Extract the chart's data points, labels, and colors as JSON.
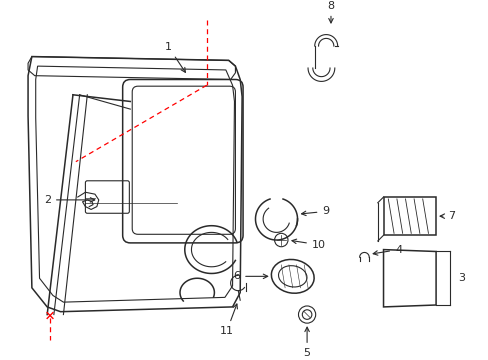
{
  "background_color": "#ffffff",
  "line_color": "#2a2a2a",
  "red_color": "#ff0000",
  "label_color": "#000000",
  "figsize": [
    4.89,
    3.6
  ],
  "dpi": 100
}
